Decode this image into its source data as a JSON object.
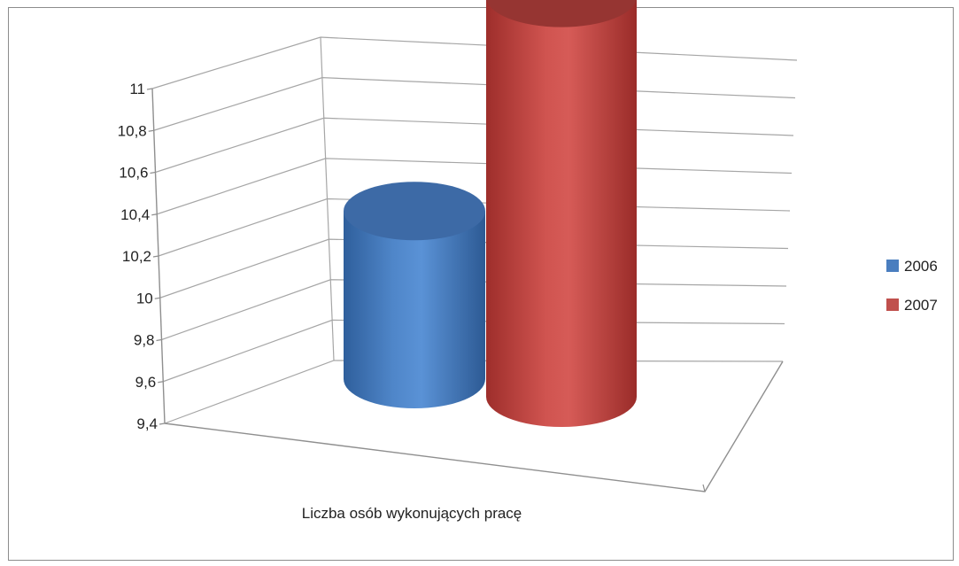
{
  "chart_data": {
    "type": "bar",
    "style": "3d-cylinder",
    "categories": [
      "Liczba osób wykonujących pracę"
    ],
    "series": [
      {
        "name": "2006",
        "values": [
          10.06
        ],
        "color": "#4a7ebf"
      },
      {
        "name": "2007",
        "values": [
          10.97
        ],
        "color": "#c0504d"
      }
    ],
    "ylim": [
      9.4,
      11
    ],
    "y_ticks": [
      "9,4",
      "9,6",
      "9,8",
      "10",
      "10,2",
      "10,4",
      "10,6",
      "10,8",
      "11"
    ],
    "grid": true,
    "legend_position": "right"
  }
}
